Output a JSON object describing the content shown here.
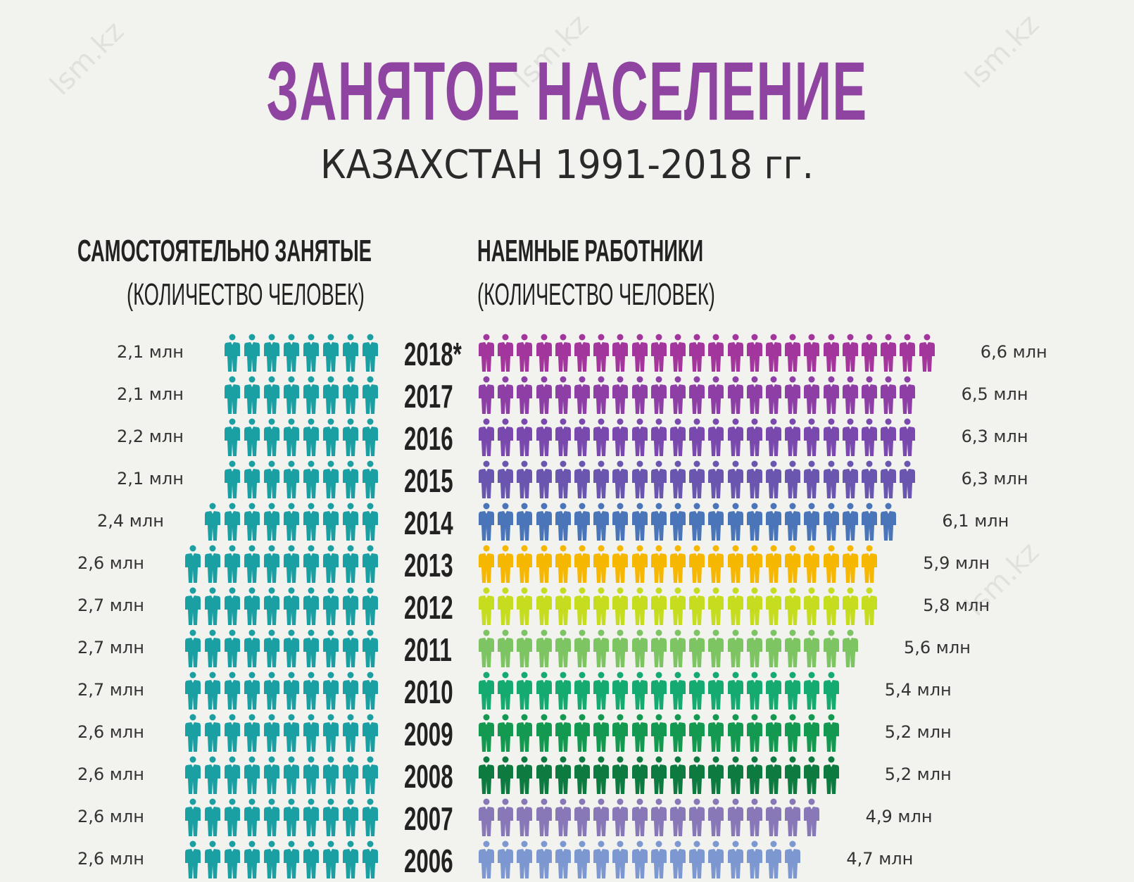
{
  "title": "ЗАНЯТОЕ НАСЕЛЕНИЕ",
  "subtitle": "КАЗАХСТАН 1991-2018 гг.",
  "watermark": "lsm.kz",
  "left_header": {
    "title": "САМОСТОЯТЕЛЬНО ЗАНЯТЫЕ",
    "sub": "(КОЛИЧЕСТВО ЧЕЛОВЕК)"
  },
  "right_header": {
    "title": "НАЕМНЫЕ РАБОТНИКИ",
    "sub": "(КОЛИЧЕСТВО ЧЕЛОВЕК)"
  },
  "chart_data": {
    "type": "bar",
    "title": "ЗАНЯТОЕ НАСЕЛЕНИЕ",
    "unit": "млн",
    "categories": [
      "2018*",
      "2017",
      "2016",
      "2015",
      "2014",
      "2013",
      "2012",
      "2011",
      "2010",
      "2009",
      "2008",
      "2007",
      "2006"
    ],
    "series": [
      {
        "name": "САМОСТОЯТЕЛЬНО ЗАНЯТЫЕ",
        "color": "#1aa0a3",
        "values": [
          2.1,
          2.1,
          2.2,
          2.1,
          2.4,
          2.6,
          2.7,
          2.7,
          2.7,
          2.6,
          2.6,
          2.6,
          2.6
        ],
        "labels": [
          "2,1 млн",
          "2,1 млн",
          "2,2 млн",
          "2,1 млн",
          "2,4 млн",
          "2,6 млн",
          "2,7 млн",
          "2,7 млн",
          "2,7 млн",
          "2,6 млн",
          "2,6 млн",
          "2,6 млн",
          "2,6 млн"
        ],
        "icon_counts": [
          8,
          8,
          8,
          8,
          9,
          10,
          10,
          10,
          10,
          10,
          10,
          10,
          10
        ]
      },
      {
        "name": "НАЕМНЫЕ РАБОТНИКИ",
        "colors": [
          "#a3369c",
          "#8e3fa6",
          "#7a49ae",
          "#6a56ae",
          "#4a76b9",
          "#f6b700",
          "#c6dc1f",
          "#7dc463",
          "#14aa70",
          "#139a50",
          "#0d7a40",
          "#8878b8",
          "#7d98d0"
        ],
        "values": [
          6.6,
          6.5,
          6.3,
          6.3,
          6.1,
          5.9,
          5.8,
          5.6,
          5.4,
          5.2,
          5.2,
          4.9,
          4.7
        ],
        "labels": [
          "6,6 млн",
          "6,5 млн",
          "6,3 млн",
          "6,3 млн",
          "6,1 млн",
          "5,9 млн",
          "5,8 млн",
          "5,6 млн",
          "5,4 млн",
          "5,2 млн",
          "5,2 млн",
          "4,9 млн",
          "4,7 млн"
        ],
        "icon_counts": [
          24,
          23,
          23,
          23,
          22,
          21,
          21,
          20,
          19,
          19,
          19,
          18,
          17
        ]
      }
    ]
  }
}
